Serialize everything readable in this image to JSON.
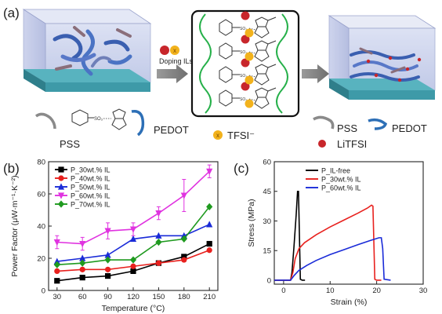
{
  "panel_a": {
    "label": "(a)",
    "doping_label": "Doping ILs",
    "ion_minus": "x",
    "so3_label": "SO₃",
    "pss_label": "PSS",
    "pedot_label": "PEDOT",
    "tfsi_label": "TFSI⁻",
    "pss_label_right": "PSS",
    "pedot_label_right": "PEDOT",
    "litfsi_label": "LiTFSI",
    "colors": {
      "substrate": "#3e9aa8",
      "ion_red": "#c8262b",
      "ion_yellow": "#f2b21c",
      "chain_blue": "#2d6fb6",
      "chain_green": "#26b04a"
    }
  },
  "chart_data": [
    {
      "panel": "(b)",
      "type": "line",
      "xlabel": "Temperature (°C)",
      "ylabel": "Power Factor (μW·m⁻¹·K⁻²)",
      "xlim": [
        20,
        220
      ],
      "ylim": [
        0,
        80
      ],
      "xticks": [
        30,
        60,
        90,
        120,
        150,
        180,
        210
      ],
      "yticks": [
        0,
        20,
        40,
        60,
        80
      ],
      "legend": "top-left",
      "series": [
        {
          "name": "P_30wt.% IL",
          "color": "#000000",
          "marker": "square",
          "x": [
            30,
            60,
            90,
            120,
            150,
            180,
            210
          ],
          "y": [
            6,
            8,
            9,
            12,
            17,
            21,
            29
          ],
          "err": [
            0,
            0,
            0,
            0,
            0,
            0,
            0
          ]
        },
        {
          "name": "P_40wt.% IL",
          "color": "#e8211e",
          "marker": "circle",
          "x": [
            30,
            60,
            90,
            120,
            150,
            180,
            210
          ],
          "y": [
            12,
            13,
            13,
            15,
            17,
            19,
            25
          ],
          "err": [
            0,
            0,
            0,
            0,
            0,
            0,
            0
          ]
        },
        {
          "name": "P_50wt.% IL",
          "color": "#1a2bd8",
          "marker": "triangle-up",
          "x": [
            30,
            60,
            90,
            120,
            150,
            180,
            210
          ],
          "y": [
            18,
            20,
            22,
            32,
            34,
            34,
            41
          ],
          "err": [
            0,
            0,
            0,
            0,
            0,
            0,
            0
          ]
        },
        {
          "name": "P_60wt.% IL",
          "color": "#e033e0",
          "marker": "triangle-down",
          "x": [
            30,
            60,
            90,
            120,
            150,
            180,
            210
          ],
          "y": [
            30,
            29,
            37,
            38,
            48,
            59,
            74
          ],
          "err": [
            4,
            4,
            5,
            4,
            4,
            10,
            4
          ]
        },
        {
          "name": "P_70wt.% IL",
          "color": "#1f9a1f",
          "marker": "diamond",
          "x": [
            30,
            60,
            90,
            120,
            150,
            180,
            210
          ],
          "y": [
            16,
            17,
            19,
            19,
            30,
            32,
            52
          ],
          "err": [
            0,
            0,
            0,
            0,
            0,
            0,
            0
          ]
        }
      ]
    },
    {
      "panel": "(c)",
      "type": "line",
      "xlabel": "Strain (%)",
      "ylabel": "Stress (MPa)",
      "xlim": [
        -2,
        30
      ],
      "ylim": [
        -2,
        60
      ],
      "xticks": [
        0,
        10,
        20,
        30
      ],
      "yticks": [
        0,
        15,
        30,
        45,
        60
      ],
      "legend": "top-left",
      "series": [
        {
          "name": "P_IL-free",
          "color": "#000000",
          "x": [
            -2,
            1.5,
            1.8,
            2.2,
            2.7,
            3.0,
            3.2,
            3.6,
            4.0,
            4.6
          ],
          "y": [
            0,
            0,
            4,
            16,
            33,
            45,
            45,
            0.5,
            0,
            0
          ]
        },
        {
          "name": "P_30wt.% IL",
          "color": "#e8211e",
          "x": [
            -2,
            1.5,
            2.0,
            2.5,
            3.3,
            4.5,
            7,
            10,
            13,
            16,
            18,
            18.9,
            19.2,
            19.6,
            20,
            21
          ],
          "y": [
            0,
            0,
            4,
            11,
            16,
            19,
            23,
            27,
            30.5,
            34,
            36.5,
            38,
            37.5,
            0.5,
            0,
            0
          ]
        },
        {
          "name": "P_60wt.% IL",
          "color": "#1a2bd8",
          "x": [
            -2,
            1.5,
            2.3,
            3.3,
            5,
            7,
            10,
            13,
            16,
            18.5,
            20.5,
            21,
            21.3,
            21.6,
            23
          ],
          "y": [
            0,
            0,
            2.5,
            5,
            7.5,
            10,
            13,
            15.5,
            18,
            20,
            21.5,
            21.5,
            16,
            0.5,
            0
          ]
        }
      ]
    }
  ]
}
